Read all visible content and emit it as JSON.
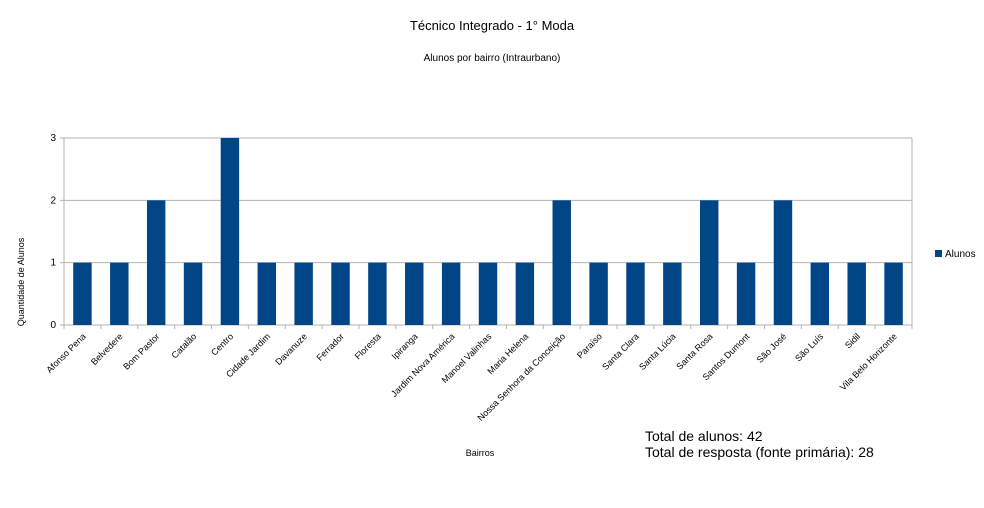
{
  "chart_data": {
    "type": "bar",
    "title": "Técnico Integrado - 1° Moda",
    "subtitle": "Alunos por bairro (Intraurbano)",
    "xlabel": "Bairros",
    "ylabel": "Quantidade de Alunos",
    "ylim": [
      0,
      3
    ],
    "yticks": [
      "0",
      "1",
      "2",
      "3"
    ],
    "grid": true,
    "legend": "right",
    "categories": [
      "Afonso Pena",
      "Belvedere",
      "Bom Pastor",
      "Catalão",
      "Centro",
      "Cidade Jardim",
      "Davanuze",
      "Ferrador",
      "Floresta",
      "Ipiranga",
      "Jardim Nova América",
      "Manoel Valinhas",
      "Maria Helena",
      "Nossa Senhora da Conceição",
      "Paraíso",
      "Santa Clara",
      "Santa Lúcia",
      "Santa Rosa",
      "Santos Dumont",
      "São José",
      "São Luís",
      "Sidil",
      "Vila Belo Horizonte"
    ],
    "series": [
      {
        "name": "Alunos",
        "color": "#004586",
        "values": [
          1,
          1,
          2,
          1,
          3,
          1,
          1,
          1,
          1,
          1,
          1,
          1,
          1,
          2,
          1,
          1,
          1,
          2,
          1,
          2,
          1,
          1,
          1
        ]
      }
    ]
  },
  "notes": {
    "total_alunos": "Total de alunos: 42",
    "total_resposta": "Total de resposta (fonte primária): 28"
  }
}
